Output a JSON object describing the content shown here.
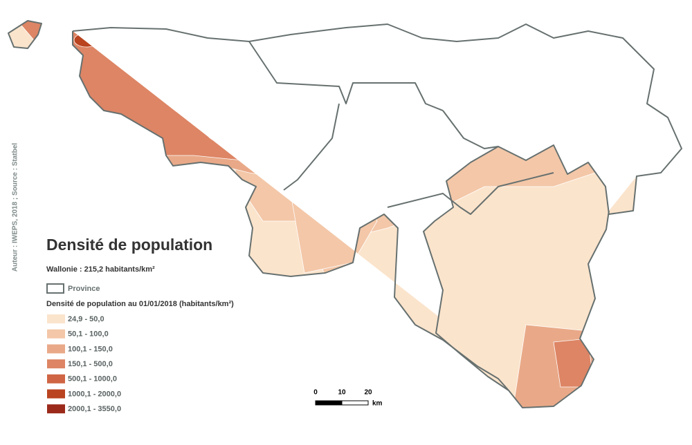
{
  "credit": "Auteur : IWEPS, 2018 ; Source : Statbel",
  "title": "Densité de population",
  "subtitle": "Wallonie : 215,2 habitants/km²",
  "province_label": "Province",
  "legend": {
    "title": "Densité de population au 01/01/2018 (habitants/km²)",
    "classes": [
      {
        "label": "24,9 - 50,0",
        "color": "#fbe4cc"
      },
      {
        "label": "50,1 - 100,0",
        "color": "#f3c7a8"
      },
      {
        "label": "100,1 - 150,0",
        "color": "#e9a988"
      },
      {
        "label": "150,1 - 500,0",
        "color": "#dd8565"
      },
      {
        "label": "500,1 - 1000,0",
        "color": "#cf6544"
      },
      {
        "label": "1000,1 - 2000,0",
        "color": "#b9441f"
      },
      {
        "label": "2000,1 - 3550,0",
        "color": "#9b2a1a"
      }
    ]
  },
  "scale": {
    "labels": [
      "0",
      "10",
      "20"
    ],
    "unit": "km"
  }
}
